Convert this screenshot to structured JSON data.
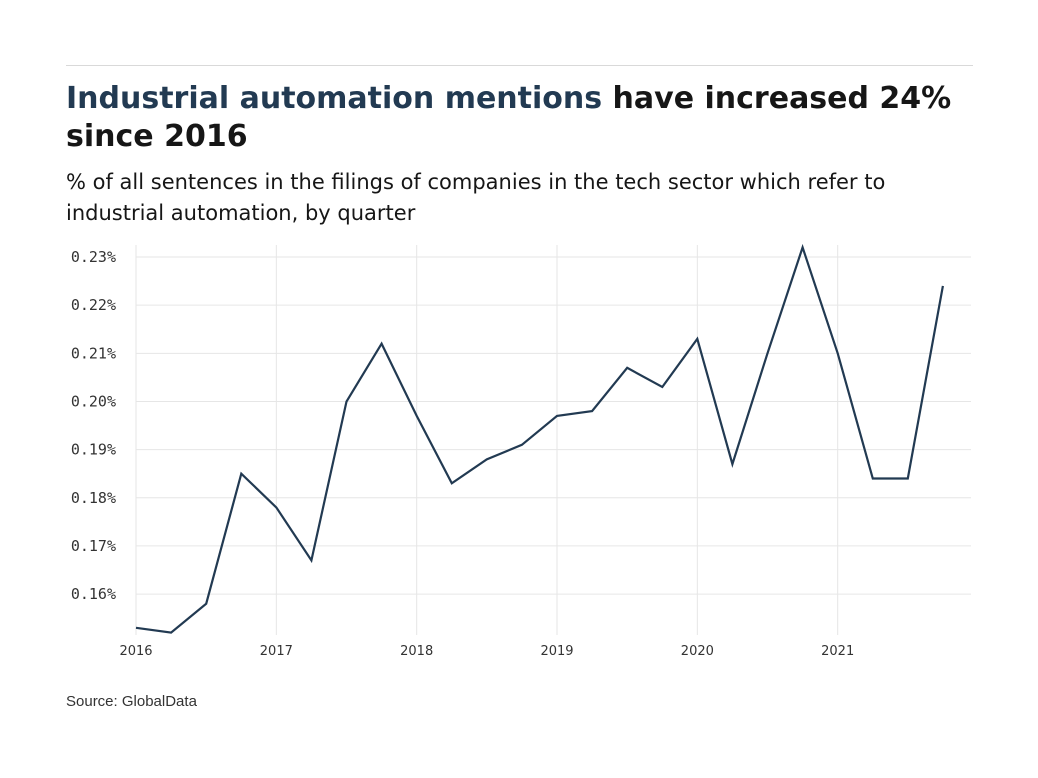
{
  "header": {
    "title_highlight": "Industrial automation mentions",
    "title_rest": " have increased 24% since 2016",
    "subtitle": "% of all sentences in the filings of companies in the tech sector which refer to industrial automation, by quarter"
  },
  "footer": {
    "source": "Source: GlobalData"
  },
  "colors": {
    "line": "#223a52",
    "highlight": "#223a52",
    "grid": "#e6e6e6"
  },
  "chart_data": {
    "type": "line",
    "title": "Industrial automation mentions have increased 24% since 2016",
    "subtitle": "% of all sentences in the filings of companies in the tech sector which refer to industrial automation, by quarter",
    "xlabel": "",
    "ylabel": "",
    "x_ticks": [
      "2016",
      "2017",
      "2018",
      "2019",
      "2020",
      "2021"
    ],
    "y_ticks": [
      "0.16%",
      "0.17%",
      "0.18%",
      "0.19%",
      "0.20%",
      "0.21%",
      "0.22%",
      "0.23%"
    ],
    "xlim": [
      2016,
      2021.95
    ],
    "ylim": [
      0.1515,
      0.2325
    ],
    "grid": true,
    "series": [
      {
        "x": [
          2016,
          2016.25,
          2016.5,
          2016.75,
          2017,
          2017.25,
          2017.5,
          2017.75,
          2018,
          2018.25,
          2018.5,
          2018.75,
          2019,
          2019.25,
          2019.5,
          2019.75,
          2020,
          2020.25,
          2020.5,
          2020.75,
          2021,
          2021.25,
          2021.5,
          2021.75
        ],
        "values": [
          0.153,
          0.152,
          0.158,
          0.185,
          0.178,
          0.167,
          0.2,
          0.212,
          0.197,
          0.183,
          0.188,
          0.191,
          0.197,
          0.198,
          0.207,
          0.203,
          0.213,
          0.187,
          0.21,
          0.232,
          0.21,
          0.184,
          0.184,
          0.224
        ]
      }
    ]
  }
}
